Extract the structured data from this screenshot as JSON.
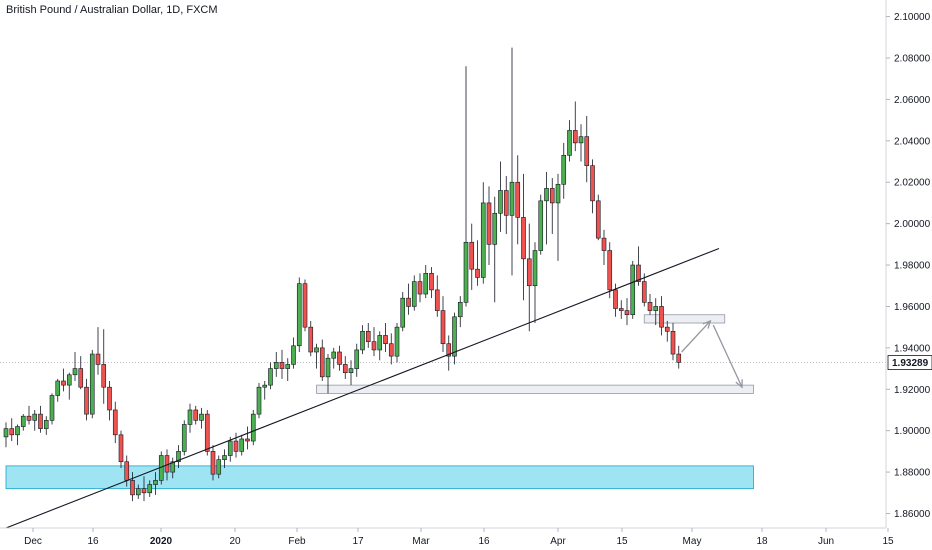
{
  "header": {
    "title": "British Pound / Australian Dollar, 1D, FXCM"
  },
  "chart_data": {
    "type": "candlestick",
    "title": "British Pound / Australian Dollar, 1D, FXCM",
    "x_ticks": [
      "Dec",
      "16",
      "2020",
      "20",
      "Feb",
      "17",
      "Mar",
      "16",
      "Apr",
      "15",
      "May",
      "18",
      "Jun",
      "15"
    ],
    "y_ticks": [
      "2.10000",
      "2.08000",
      "2.06000",
      "2.04000",
      "2.02000",
      "2.00000",
      "1.98000",
      "1.96000",
      "1.94000",
      "1.92000",
      "1.90000",
      "1.88000",
      "1.86000"
    ],
    "y_range": [
      1.853,
      2.108
    ],
    "last_price": "1.93289",
    "colors": {
      "up": "#4caf50",
      "down": "#ef5350",
      "zone_gray": "#e0e3eb",
      "zone_cyan": "#7fdbee",
      "line": "#131722",
      "arrow": "#9598a1"
    },
    "candles": [
      [
        1.897,
        1.904,
        1.892,
        1.901
      ],
      [
        1.901,
        1.906,
        1.895,
        1.898
      ],
      [
        1.898,
        1.903,
        1.893,
        1.902
      ],
      [
        1.902,
        1.908,
        1.9,
        1.907
      ],
      [
        1.907,
        1.912,
        1.903,
        1.905
      ],
      [
        1.905,
        1.91,
        1.9,
        1.908
      ],
      [
        1.908,
        1.912,
        1.899,
        1.901
      ],
      [
        1.901,
        1.907,
        1.898,
        1.905
      ],
      [
        1.905,
        1.918,
        1.903,
        1.917
      ],
      [
        1.917,
        1.925,
        1.914,
        1.924
      ],
      [
        1.924,
        1.93,
        1.919,
        1.922
      ],
      [
        1.922,
        1.928,
        1.915,
        1.927
      ],
      [
        1.927,
        1.938,
        1.924,
        1.93
      ],
      [
        1.93,
        1.936,
        1.92,
        1.921
      ],
      [
        1.921,
        1.925,
        1.905,
        1.908
      ],
      [
        1.908,
        1.939,
        1.906,
        1.937
      ],
      [
        1.937,
        1.95,
        1.927,
        1.932
      ],
      [
        1.932,
        1.949,
        1.913,
        1.921
      ],
      [
        1.921,
        1.924,
        1.905,
        1.91
      ],
      [
        1.91,
        1.914,
        1.894,
        1.898
      ],
      [
        1.898,
        1.9,
        1.882,
        1.885
      ],
      [
        1.885,
        1.888,
        1.873,
        1.876
      ],
      [
        1.876,
        1.88,
        1.866,
        1.869
      ],
      [
        1.869,
        1.874,
        1.867,
        1.872
      ],
      [
        1.872,
        1.878,
        1.866,
        1.87
      ],
      [
        1.87,
        1.876,
        1.868,
        1.874
      ],
      [
        1.874,
        1.88,
        1.869,
        1.876
      ],
      [
        1.876,
        1.89,
        1.874,
        1.888
      ],
      [
        1.888,
        1.891,
        1.876,
        1.88
      ],
      [
        1.88,
        1.887,
        1.877,
        1.885
      ],
      [
        1.885,
        1.893,
        1.882,
        1.89
      ],
      [
        1.89,
        1.905,
        1.888,
        1.903
      ],
      [
        1.903,
        1.913,
        1.899,
        1.91
      ],
      [
        1.91,
        1.912,
        1.903,
        1.905
      ],
      [
        1.905,
        1.911,
        1.901,
        1.908
      ],
      [
        1.908,
        1.91,
        1.888,
        1.89
      ],
      [
        1.89,
        1.893,
        1.876,
        1.879
      ],
      [
        1.879,
        1.888,
        1.877,
        1.886
      ],
      [
        1.886,
        1.891,
        1.882,
        1.888
      ],
      [
        1.888,
        1.897,
        1.885,
        1.895
      ],
      [
        1.895,
        1.899,
        1.887,
        1.89
      ],
      [
        1.89,
        1.898,
        1.888,
        1.896
      ],
      [
        1.896,
        1.902,
        1.891,
        1.895
      ],
      [
        1.895,
        1.91,
        1.893,
        1.908
      ],
      [
        1.908,
        1.923,
        1.906,
        1.921
      ],
      [
        1.921,
        1.924,
        1.915,
        1.922
      ],
      [
        1.922,
        1.933,
        1.92,
        1.93
      ],
      [
        1.93,
        1.938,
        1.926,
        1.933
      ],
      [
        1.933,
        1.939,
        1.925,
        1.93
      ],
      [
        1.93,
        1.935,
        1.924,
        1.932
      ],
      [
        1.932,
        1.945,
        1.93,
        1.941
      ],
      [
        1.941,
        1.974,
        1.938,
        1.971
      ],
      [
        1.971,
        1.973,
        1.948,
        1.95
      ],
      [
        1.95,
        1.953,
        1.936,
        1.938
      ],
      [
        1.938,
        1.942,
        1.93,
        1.94
      ],
      [
        1.94,
        1.944,
        1.924,
        1.926
      ],
      [
        1.926,
        1.937,
        1.918,
        1.935
      ],
      [
        1.935,
        1.94,
        1.93,
        1.938
      ],
      [
        1.938,
        1.941,
        1.929,
        1.932
      ],
      [
        1.932,
        1.936,
        1.925,
        1.928
      ],
      [
        1.928,
        1.934,
        1.922,
        1.93
      ],
      [
        1.93,
        1.942,
        1.926,
        1.939
      ],
      [
        1.939,
        1.951,
        1.937,
        1.948
      ],
      [
        1.948,
        1.952,
        1.94,
        1.943
      ],
      [
        1.943,
        1.95,
        1.936,
        1.939
      ],
      [
        1.939,
        1.948,
        1.934,
        1.946
      ],
      [
        1.946,
        1.952,
        1.938,
        1.942
      ],
      [
        1.942,
        1.947,
        1.932,
        1.936
      ],
      [
        1.936,
        1.952,
        1.933,
        1.95
      ],
      [
        1.95,
        1.967,
        1.948,
        1.964
      ],
      [
        1.964,
        1.971,
        1.956,
        1.96
      ],
      [
        1.96,
        1.975,
        1.958,
        1.972
      ],
      [
        1.972,
        1.976,
        1.962,
        1.966
      ],
      [
        1.966,
        1.98,
        1.964,
        1.976
      ],
      [
        1.976,
        1.979,
        1.964,
        1.968
      ],
      [
        1.968,
        1.975,
        1.955,
        1.958
      ],
      [
        1.958,
        1.965,
        1.938,
        1.942
      ],
      [
        1.942,
        1.946,
        1.929,
        1.936
      ],
      [
        1.936,
        1.957,
        1.932,
        1.955
      ],
      [
        1.955,
        1.965,
        1.95,
        1.962
      ],
      [
        1.962,
        2.076,
        1.96,
        1.991
      ],
      [
        1.991,
        2.0,
        1.968,
        1.978
      ],
      [
        1.978,
        1.992,
        1.97,
        1.974
      ],
      [
        1.974,
        2.02,
        1.971,
        2.01
      ],
      [
        2.01,
        2.018,
        1.98,
        1.99
      ],
      [
        1.99,
        2.013,
        1.962,
        2.005
      ],
      [
        2.005,
        2.03,
        1.996,
        2.016
      ],
      [
        2.016,
        2.023,
        1.995,
        2.004
      ],
      [
        2.004,
        2.085,
        1.975,
        2.02
      ],
      [
        2.02,
        2.033,
        1.99,
        2.003
      ],
      [
        2.003,
        2.024,
        1.963,
        1.983
      ],
      [
        1.983,
        2.0,
        1.948,
        1.97
      ],
      [
        1.97,
        1.991,
        1.952,
        1.987
      ],
      [
        1.987,
        2.014,
        1.985,
        2.011
      ],
      [
        2.011,
        2.025,
        1.99,
        2.017
      ],
      [
        2.017,
        2.022,
        1.995,
        2.01
      ],
      [
        2.01,
        2.024,
        1.982,
        2.019
      ],
      [
        2.019,
        2.039,
        2.012,
        2.033
      ],
      [
        2.033,
        2.05,
        2.03,
        2.045
      ],
      [
        2.045,
        2.059,
        2.035,
        2.039
      ],
      [
        2.039,
        2.048,
        2.03,
        2.042
      ],
      [
        2.042,
        2.052,
        2.02,
        2.028
      ],
      [
        2.028,
        2.031,
        2.005,
        2.011
      ],
      [
        2.011,
        2.014,
        1.992,
        1.993
      ],
      [
        1.993,
        1.997,
        1.98,
        1.987
      ],
      [
        1.987,
        1.991,
        1.964,
        1.968
      ],
      [
        1.968,
        1.971,
        1.955,
        1.959
      ],
      [
        1.959,
        1.963,
        1.954,
        1.958
      ],
      [
        1.958,
        1.964,
        1.951,
        1.956
      ],
      [
        1.956,
        1.982,
        1.954,
        1.98
      ],
      [
        1.98,
        1.989,
        1.97,
        1.972
      ],
      [
        1.972,
        1.976,
        1.96,
        1.962
      ],
      [
        1.962,
        1.966,
        1.956,
        1.958
      ],
      [
        1.958,
        1.964,
        1.951,
        1.96
      ],
      [
        1.96,
        1.965,
        1.946,
        1.95
      ],
      [
        1.95,
        1.953,
        1.943,
        1.948
      ],
      [
        1.948,
        1.952,
        1.934,
        1.937
      ],
      [
        1.937,
        1.941,
        1.93,
        1.933
      ]
    ],
    "annotations": {
      "trendline": {
        "from": [
          0,
          1.853
        ],
        "to": [
          124,
          1.988
        ]
      },
      "zones": [
        {
          "name": "resistance-zone",
          "from": 111,
          "to": 125,
          "y": [
            1.952,
            1.956
          ],
          "color": "#e0e3eb"
        },
        {
          "name": "support-zone",
          "from": 54,
          "to": 130,
          "y": [
            1.918,
            1.922
          ],
          "color": "#e0e3eb"
        },
        {
          "name": "demand-zone",
          "from": 0,
          "to": 130,
          "y": [
            1.872,
            1.883
          ],
          "color": "#7fdbee"
        }
      ],
      "arrows": [
        {
          "from": [
            117.5,
            1.938
          ],
          "to": [
            122.5,
            1.953
          ]
        },
        {
          "from": [
            123,
            1.951
          ],
          "to": [
            128,
            1.921
          ]
        }
      ]
    }
  }
}
